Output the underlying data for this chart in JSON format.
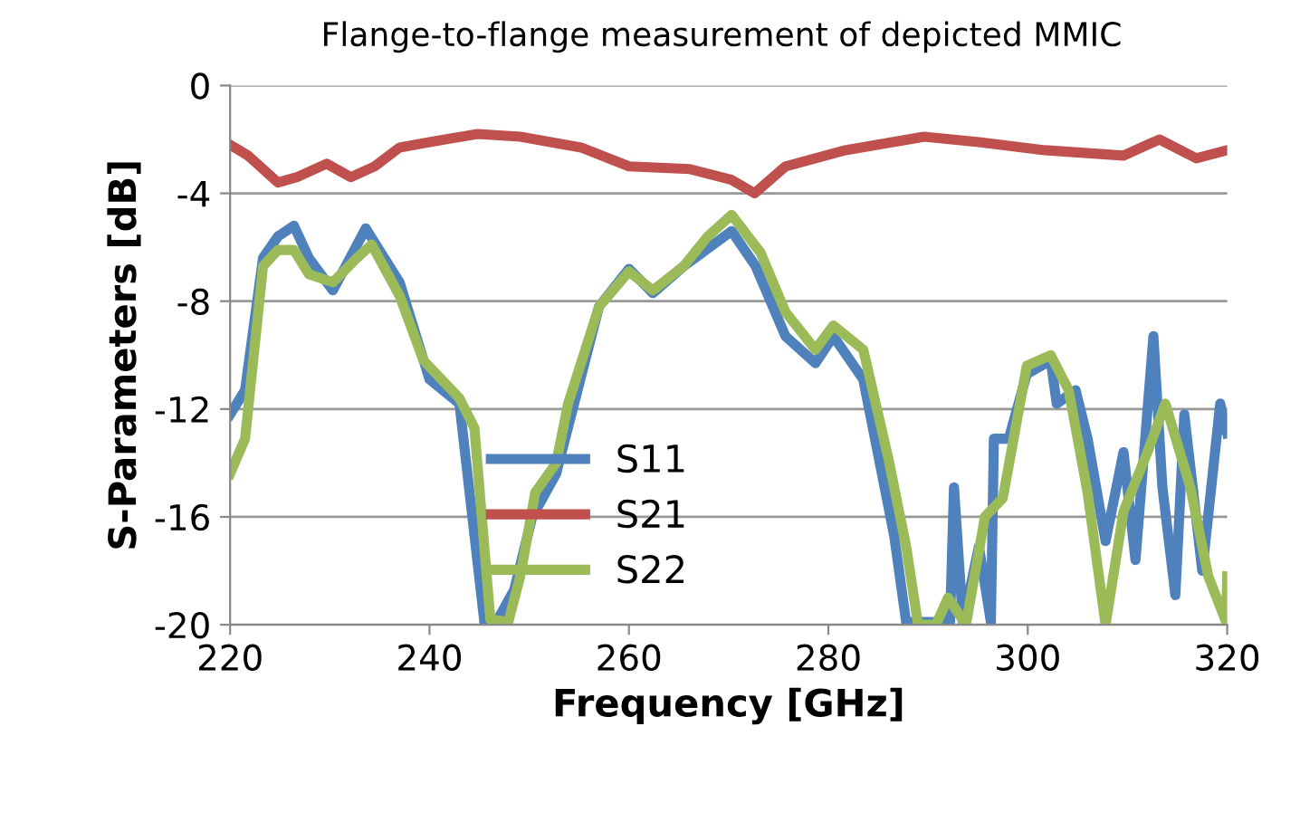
{
  "chart_data": {
    "type": "line",
    "title": "Flange-to-flange measurement of depicted MMIC",
    "xlabel": "Frequency [GHz]",
    "ylabel": "S-Parameters [dB]",
    "xlim": [
      220,
      320
    ],
    "xticks": [
      220,
      240,
      260,
      280,
      300,
      320
    ],
    "ylim": [
      -20,
      0
    ],
    "yticks": [
      -20,
      -16,
      -12,
      -8,
      -4,
      0
    ],
    "grid": "y",
    "legend": "bottom",
    "line_style": "solid",
    "series": [
      {
        "name": "S11",
        "color": "#4f81bd",
        "x": [
          220,
          221.5,
          223.3,
          224.8,
          226.4,
          227.9,
          230.3,
          233.6,
          237,
          240,
          243,
          245.5,
          246.7,
          248.5,
          250.3,
          252.7,
          257,
          260,
          262.4,
          265.5,
          270.3,
          272.7,
          275.7,
          278.7,
          280.5,
          283.5,
          286.6,
          287.8,
          289.6,
          292.2,
          292.6,
          293.5,
          295.1,
          296.3,
          296.6,
          298.1,
          299.9,
          302.3,
          302.9,
          304.8,
          306,
          307.8,
          309.6,
          310.8,
          312.6,
          313.5,
          314.8,
          315.7,
          317.5,
          319.3,
          320
        ],
        "values": [
          -12.2,
          -11.3,
          -6.4,
          -5.6,
          -5.2,
          -6.4,
          -7.6,
          -5.3,
          -7.3,
          -10.9,
          -11.8,
          -19.9,
          -19.9,
          -18.7,
          -16,
          -14.4,
          -8.2,
          -6.8,
          -7.7,
          -6.7,
          -5.4,
          -6.7,
          -9.3,
          -10.3,
          -9.3,
          -10.9,
          -16.7,
          -19.9,
          -19.9,
          -19.9,
          -14.9,
          -19.9,
          -17.1,
          -19.9,
          -13.1,
          -13.1,
          -10.7,
          -10.2,
          -11.8,
          -11.3,
          -13.1,
          -16.9,
          -13.6,
          -17.6,
          -9.3,
          -14.9,
          -18.9,
          -12.2,
          -18,
          -11.8,
          -12.9
        ]
      },
      {
        "name": "S21",
        "color": "#c0504d",
        "x": [
          220,
          221.8,
          224.8,
          226.7,
          229.7,
          232.1,
          234.5,
          237,
          240,
          244.8,
          249.1,
          255.2,
          260,
          266.1,
          270.3,
          272.6,
          275.7,
          281.7,
          289.6,
          295.1,
          301.7,
          309.6,
          313.2,
          316.9,
          320
        ],
        "values": [
          -2.2,
          -2.6,
          -3.6,
          -3.4,
          -2.9,
          -3.4,
          -3.0,
          -2.3,
          -2.1,
          -1.8,
          -1.9,
          -2.3,
          -3.0,
          -3.1,
          -3.5,
          -4.0,
          -3.0,
          -2.4,
          -1.9,
          -2.1,
          -2.4,
          -2.6,
          -2.0,
          -2.7,
          -2.4
        ]
      },
      {
        "name": "S22",
        "color": "#9bbb59",
        "x": [
          220,
          221.5,
          223.3,
          224.8,
          226.4,
          227.9,
          230.3,
          232.7,
          234.2,
          237,
          239.4,
          243,
          244.5,
          246.1,
          247.9,
          249.1,
          250.6,
          252.7,
          253.9,
          257,
          260,
          262.4,
          265.5,
          267.9,
          270.3,
          273.2,
          275.7,
          278.7,
          280.5,
          283.5,
          286,
          287.8,
          289,
          290.8,
          292,
          293.8,
          295.7,
          297.5,
          299.9,
          302.3,
          304.1,
          306,
          307.8,
          309.6,
          312,
          313.8,
          316.3,
          318.1,
          319.9,
          320
        ],
        "values": [
          -14.4,
          -13.1,
          -6.7,
          -6.1,
          -6.1,
          -7.0,
          -7.3,
          -6.4,
          -5.9,
          -7.8,
          -10.2,
          -11.6,
          -12.7,
          -19.8,
          -19.9,
          -18.2,
          -15.1,
          -14,
          -11.8,
          -8.2,
          -6.9,
          -7.6,
          -6.7,
          -5.6,
          -4.8,
          -6.2,
          -8.4,
          -9.8,
          -8.9,
          -9.8,
          -13.8,
          -17.1,
          -20,
          -20,
          -19,
          -20,
          -16,
          -15.3,
          -10.4,
          -10,
          -11.3,
          -15.1,
          -20,
          -15.8,
          -13.6,
          -11.8,
          -14.9,
          -18.2,
          -19.9,
          -18.2
        ]
      }
    ]
  }
}
